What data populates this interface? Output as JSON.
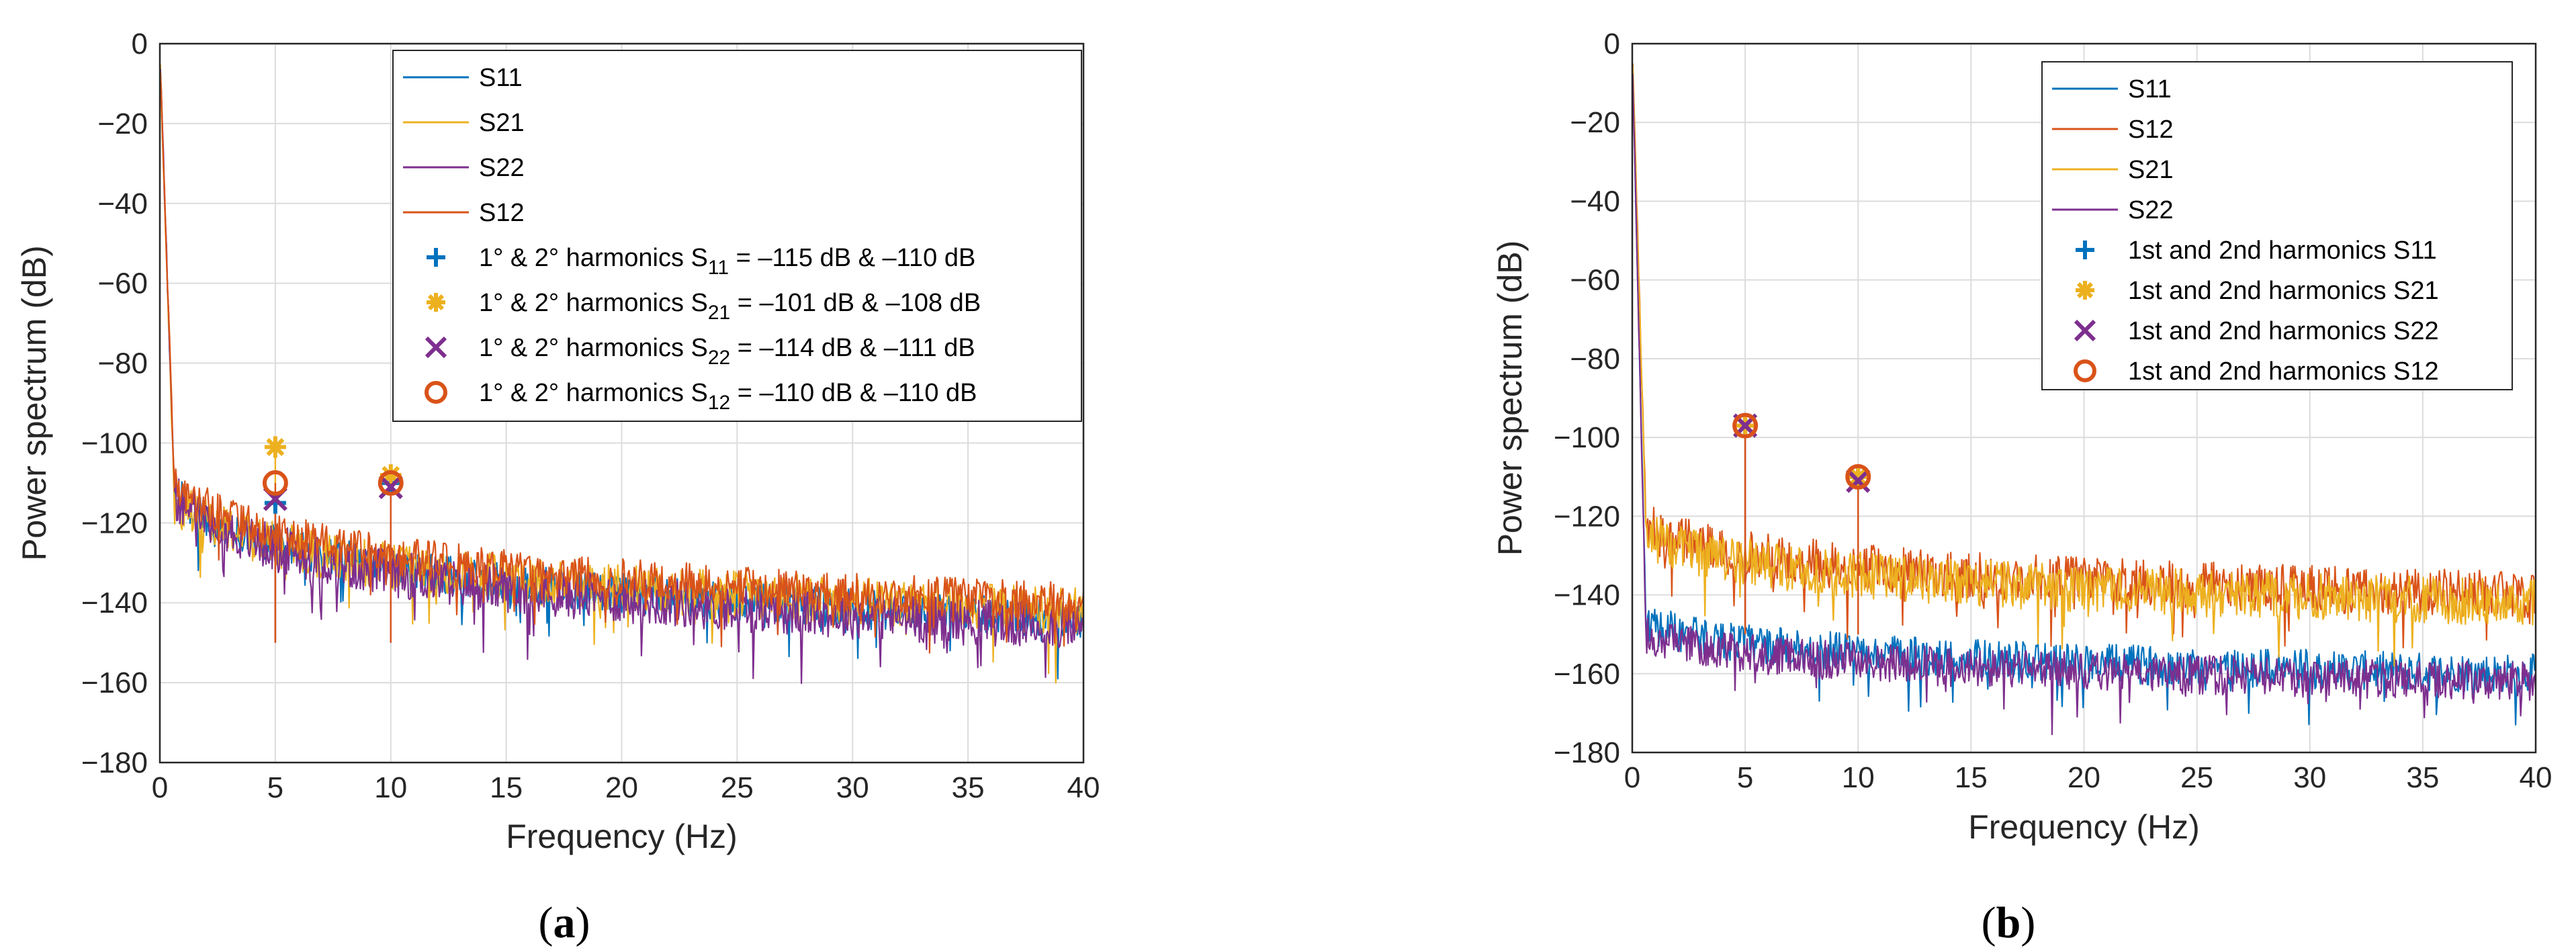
{
  "figure": {
    "panel_labels": [
      "(a)",
      "(b)"
    ]
  },
  "chart_data": [
    {
      "type": "line",
      "panel": "(a)",
      "xlabel": "Frequency (Hz)",
      "ylabel": "Power spectrum (dB)",
      "xlim": [
        0,
        40
      ],
      "ylim": [
        -180,
        0
      ],
      "xticks": [
        0,
        5,
        10,
        15,
        20,
        25,
        30,
        35,
        40
      ],
      "yticks": [
        0,
        -20,
        -40,
        -60,
        -80,
        -100,
        -120,
        -140,
        -160,
        -180
      ],
      "grid": true,
      "legend_position": "top-right",
      "series": [
        {
          "name": "S11",
          "color": "#0072BD",
          "floor_start": -108,
          "floor_end": -144,
          "noise": 5,
          "seed": 11
        },
        {
          "name": "S21",
          "color": "#EDB120",
          "floor_start": -110,
          "floor_end": -142,
          "noise": 6,
          "seed": 21
        },
        {
          "name": "S22",
          "color": "#7E2F8E",
          "floor_start": -108,
          "floor_end": -146,
          "noise": 6,
          "seed": 22
        },
        {
          "name": "S12",
          "color": "#D95319",
          "floor_start": -106,
          "floor_end": -140,
          "noise": 5,
          "seed": 12
        }
      ],
      "harmonics": [
        {
          "label": "1° & 2° harmonics S11 = –115 dB & –110 dB",
          "sub": "11",
          "values_text": " = –115 dB & –110 dB",
          "marker": "plus",
          "color": "#0072BD",
          "x": [
            5,
            10
          ],
          "y": [
            -115,
            -110
          ]
        },
        {
          "label": "1° & 2° harmonics S21 = –101 dB & –108 dB",
          "sub": "21",
          "values_text": " = –101 dB & –108 dB",
          "marker": "asterisk",
          "color": "#EDB120",
          "x": [
            5,
            10
          ],
          "y": [
            -101,
            -108
          ]
        },
        {
          "label": "1° & 2° harmonics S22 = –114 dB & –111 dB",
          "sub": "22",
          "values_text": " = –114 dB & –111 dB",
          "marker": "cross",
          "color": "#7E2F8E",
          "x": [
            5,
            10
          ],
          "y": [
            -114,
            -111
          ]
        },
        {
          "label": "1° & 2° harmonics S12 = –110 dB & –110 dB",
          "sub": "12",
          "values_text": " = –110 dB & –110 dB",
          "marker": "circle",
          "color": "#D95319",
          "x": [
            5,
            10
          ],
          "y": [
            -110,
            -110
          ]
        }
      ],
      "harmonic_prefix": "1° & 2° harmonics S"
    },
    {
      "type": "line",
      "panel": "(b)",
      "xlabel": "Frequency (Hz)",
      "ylabel": "Power spectrum (dB)",
      "xlim": [
        0,
        40
      ],
      "ylim": [
        -180,
        0
      ],
      "xticks": [
        0,
        5,
        10,
        15,
        20,
        25,
        30,
        35,
        40
      ],
      "yticks": [
        0,
        -20,
        -40,
        -60,
        -80,
        -100,
        -120,
        -140,
        -160,
        -180
      ],
      "grid": true,
      "legend_position": "top-right",
      "series": [
        {
          "name": "S11",
          "color": "#0072BD",
          "floor_start": -145,
          "floor_end": -160,
          "noise": 5,
          "seed": 31
        },
        {
          "name": "S12",
          "color": "#D95319",
          "floor_start": -120,
          "floor_end": -140,
          "noise": 6,
          "seed": 32
        },
        {
          "name": "S21",
          "color": "#EDB120",
          "floor_start": -122,
          "floor_end": -142,
          "noise": 6,
          "seed": 33
        },
        {
          "name": "S22",
          "color": "#7E2F8E",
          "floor_start": -148,
          "floor_end": -162,
          "noise": 5,
          "seed": 34
        }
      ],
      "harmonics": [
        {
          "label": "1st and 2nd harmonics S11",
          "marker": "plus",
          "color": "#0072BD",
          "x": [
            5,
            10
          ],
          "y": [
            -97,
            -110
          ]
        },
        {
          "label": "1st and 2nd harmonics S21",
          "marker": "asterisk",
          "color": "#EDB120",
          "x": [
            5,
            10
          ],
          "y": [
            -97,
            -110
          ]
        },
        {
          "label": "1st and 2nd harmonics S22",
          "marker": "cross",
          "color": "#7E2F8E",
          "x": [
            5,
            10
          ],
          "y": [
            -97,
            -111
          ]
        },
        {
          "label": "1st and 2nd harmonics S12",
          "marker": "circle",
          "color": "#D95319",
          "x": [
            5,
            10
          ],
          "y": [
            -97,
            -110
          ]
        }
      ]
    }
  ]
}
